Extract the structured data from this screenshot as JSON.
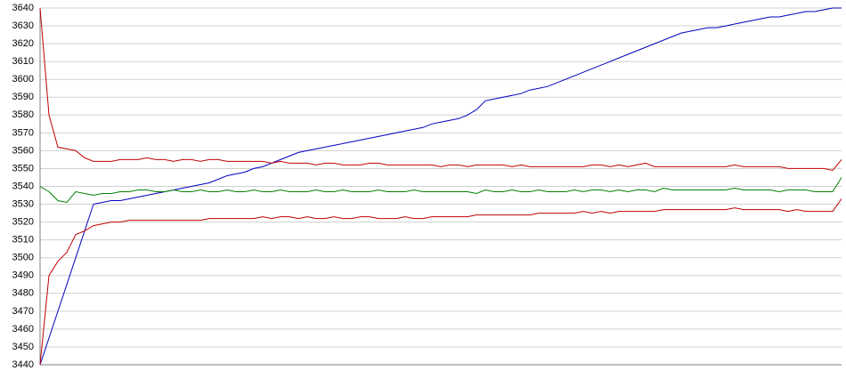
{
  "chart_data": {
    "type": "line",
    "categories": [
      null,
      null,
      null,
      null,
      null,
      null,
      null,
      null,
      null,
      null,
      null,
      null,
      null,
      null,
      null,
      null,
      null,
      null,
      null,
      null,
      null,
      null,
      null,
      null,
      null,
      null,
      null,
      null,
      null,
      null,
      null,
      null,
      null,
      null,
      null,
      null,
      null,
      null,
      null,
      null,
      null,
      null,
      null,
      null,
      null,
      null,
      null,
      null,
      null,
      null,
      null,
      null,
      null,
      null,
      null,
      null,
      null,
      null,
      null,
      null,
      null,
      null,
      null,
      null,
      null,
      null,
      null,
      null,
      null,
      null,
      null,
      null,
      null,
      null,
      null,
      null,
      null,
      null,
      null,
      null,
      null,
      null,
      null,
      null,
      null,
      null,
      null,
      null,
      null,
      null,
      null
    ],
    "series": [
      {
        "color": "#0000c0",
        "values": [
          3440,
          3455,
          3470,
          3485,
          3500,
          3515,
          3530,
          3531,
          3532,
          3532,
          3533,
          3534,
          3535,
          3536,
          3537,
          3538,
          3539,
          3540,
          3541,
          3542,
          3544,
          3546,
          3547,
          3548,
          3550,
          3551,
          3553,
          3555,
          3557,
          3559,
          3560,
          3561,
          3562,
          3563,
          3564,
          3565,
          3566,
          3567,
          3568,
          3569,
          3570,
          3571,
          3572,
          3573,
          3575,
          3576,
          3577,
          3578,
          3580,
          3583,
          3588,
          3589,
          3590,
          3591,
          3592,
          3594,
          3595,
          3596,
          3598,
          3600,
          3602,
          3604,
          3606,
          3608,
          3610,
          3612,
          3614,
          3616,
          3618,
          3620,
          3622,
          3624,
          3626,
          3627,
          3628,
          3629,
          3629,
          3630,
          3631,
          3632,
          3633,
          3634,
          3635,
          3635,
          3636,
          3637,
          3638,
          3638,
          3639,
          3640,
          3640
        ]
      },
      {
        "color": "#c00000",
        "values": [
          3640,
          3580,
          3562,
          3561,
          3560,
          3556,
          3554,
          3554,
          3554,
          3555,
          3555,
          3555,
          3556,
          3555,
          3555,
          3554,
          3555,
          3555,
          3554,
          3555,
          3555,
          3554,
          3554,
          3554,
          3554,
          3554,
          3553,
          3554,
          3553,
          3553,
          3553,
          3552,
          3553,
          3553,
          3552,
          3552,
          3552,
          3553,
          3553,
          3552,
          3552,
          3552,
          3552,
          3552,
          3552,
          3551,
          3552,
          3552,
          3551,
          3552,
          3552,
          3552,
          3552,
          3551,
          3552,
          3551,
          3551,
          3551,
          3551,
          3551,
          3551,
          3551,
          3552,
          3552,
          3551,
          3552,
          3551,
          3552,
          3553,
          3551,
          3551,
          3551,
          3551,
          3551,
          3551,
          3551,
          3551,
          3551,
          3552,
          3551,
          3551,
          3551,
          3551,
          3551,
          3550,
          3550,
          3550,
          3550,
          3550,
          3549,
          3555
        ]
      },
      {
        "color": "#008000",
        "values": [
          3540,
          3537,
          3532,
          3531,
          3537,
          3536,
          3535,
          3536,
          3536,
          3537,
          3537,
          3538,
          3538,
          3537,
          3537,
          3538,
          3537,
          3537,
          3538,
          3537,
          3537,
          3538,
          3537,
          3537,
          3538,
          3537,
          3537,
          3538,
          3537,
          3537,
          3537,
          3538,
          3537,
          3537,
          3538,
          3537,
          3537,
          3537,
          3538,
          3537,
          3537,
          3537,
          3538,
          3537,
          3537,
          3537,
          3537,
          3537,
          3537,
          3536,
          3538,
          3537,
          3537,
          3538,
          3537,
          3537,
          3538,
          3537,
          3537,
          3537,
          3538,
          3537,
          3538,
          3538,
          3537,
          3538,
          3537,
          3538,
          3538,
          3537,
          3539,
          3538,
          3538,
          3538,
          3538,
          3538,
          3538,
          3538,
          3539,
          3538,
          3538,
          3538,
          3538,
          3537,
          3538,
          3538,
          3538,
          3537,
          3537,
          3537,
          3545
        ]
      },
      {
        "color": "#c00000",
        "values": [
          3440,
          3490,
          3498,
          3503,
          3513,
          3515,
          3518,
          3519,
          3520,
          3520,
          3521,
          3521,
          3521,
          3521,
          3521,
          3521,
          3521,
          3521,
          3521,
          3522,
          3522,
          3522,
          3522,
          3522,
          3522,
          3523,
          3522,
          3523,
          3523,
          3522,
          3523,
          3522,
          3522,
          3523,
          3522,
          3522,
          3523,
          3523,
          3522,
          3522,
          3522,
          3523,
          3522,
          3522,
          3523,
          3523,
          3523,
          3523,
          3523,
          3524,
          3524,
          3524,
          3524,
          3524,
          3524,
          3524,
          3525,
          3525,
          3525,
          3525,
          3525,
          3526,
          3525,
          3526,
          3525,
          3526,
          3526,
          3526,
          3526,
          3526,
          3527,
          3527,
          3527,
          3527,
          3527,
          3527,
          3527,
          3527,
          3528,
          3527,
          3527,
          3527,
          3527,
          3527,
          3526,
          3527,
          3526,
          3526,
          3526,
          3526,
          3533
        ]
      }
    ],
    "ylim": [
      3440,
      3640
    ],
    "yticks": [
      3440,
      3450,
      3460,
      3470,
      3480,
      3490,
      3500,
      3510,
      3520,
      3530,
      3540,
      3550,
      3560,
      3570,
      3580,
      3590,
      3600,
      3610,
      3620,
      3630,
      3640
    ],
    "grid": true
  }
}
